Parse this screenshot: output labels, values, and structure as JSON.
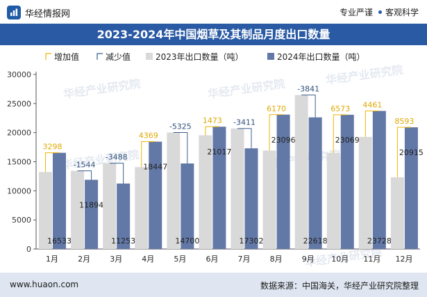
{
  "header": {
    "brand": "华经情报网",
    "tagline_left": "专业严谨",
    "tagline_right": "客观科学"
  },
  "title": "2023-2024年中国烟草及其制品月度出口数量",
  "footer": {
    "site": "www.huaon.com",
    "source": "数据来源：中国海关，华经产业研究院整理"
  },
  "watermark": "华经产业研究院",
  "colors": {
    "brand_blue": "#2a5aa4",
    "series_2023": "#d9d9d9",
    "series_2024": "#6278a6",
    "increase": "#f0b400",
    "decrease": "#3a5f8f",
    "footer_bg": "#dfe6f1"
  },
  "chart_data": {
    "type": "bar",
    "categories": [
      "1月",
      "2月",
      "3月",
      "4月",
      "5月",
      "6月",
      "7月",
      "8月",
      "9月",
      "10月",
      "11月",
      "12月"
    ],
    "series": [
      {
        "name": "2023年出口数量（吨）",
        "values": [
          13235,
          13438,
          14741,
          14078,
          20025,
          19544,
          20713,
          16926,
          26459,
          16496,
          19267,
          12322
        ]
      },
      {
        "name": "2024年出口数量（吨）",
        "values": [
          16533,
          11894,
          11253,
          18447,
          14700,
          21017,
          17302,
          23096,
          22618,
          23069,
          23728,
          20915
        ]
      }
    ],
    "changes": [
      3298,
      -1544,
      -3488,
      4369,
      -5325,
      1473,
      -3411,
      6170,
      -3841,
      6573,
      4461,
      8593
    ],
    "legend": [
      "增加值",
      "减少值",
      "2023年出口数量（吨）",
      "2024年出口数量（吨）"
    ],
    "legend_position": "top-left",
    "ylim": [
      0,
      30000
    ],
    "yticks": [
      0,
      5000,
      10000,
      15000,
      20000,
      25000,
      30000
    ],
    "grid": false
  }
}
